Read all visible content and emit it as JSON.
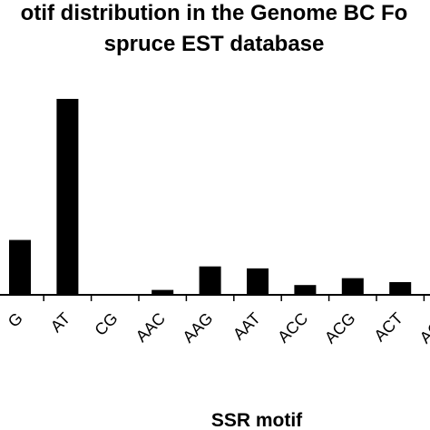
{
  "chart_data": {
    "type": "bar",
    "title_lines": [
      "otif distribution in the Genome BC Fo",
      "spruce EST database"
    ],
    "xlabel": "SSR motif",
    "ylabel": "",
    "categories": [
      "G",
      "AT",
      "CG",
      "AAC",
      "AAG",
      "AAT",
      "ACC",
      "ACG",
      "ACT",
      "AGC"
    ],
    "values": [
      28,
      100,
      0,
      2.5,
      14.5,
      13.5,
      5,
      8.5,
      6.5,
      0
    ],
    "ylim": [
      0,
      100
    ],
    "grid": false,
    "legend": "none",
    "bar_color": "#000000"
  }
}
